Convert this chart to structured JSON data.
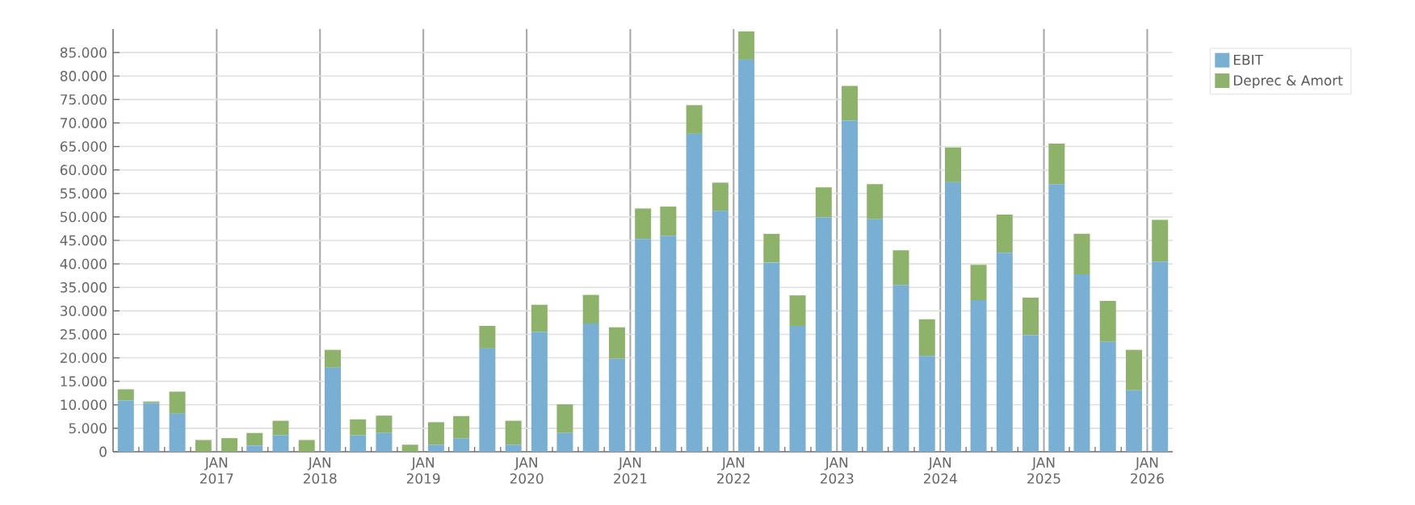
{
  "chart_data": {
    "type": "bar",
    "stacked": true,
    "x": [
      "2016-02-15",
      "2016-05-15",
      "2016-08-15",
      "2016-11-15",
      "2017-02-15",
      "2017-05-15",
      "2017-08-15",
      "2017-11-15",
      "2018-02-15",
      "2018-05-15",
      "2018-08-15",
      "2018-11-15",
      "2019-02-15",
      "2019-05-15",
      "2019-08-15",
      "2019-11-15",
      "2020-02-15",
      "2020-05-15",
      "2020-08-15",
      "2020-11-15",
      "2021-02-15",
      "2021-05-15",
      "2021-08-15",
      "2021-11-15",
      "2022-02-15",
      "2022-05-15",
      "2022-08-15",
      "2022-11-15",
      "2023-02-15",
      "2023-05-15",
      "2023-08-15",
      "2023-11-15",
      "2024-02-15",
      "2024-05-15",
      "2024-08-15",
      "2024-11-15",
      "2025-02-15",
      "2025-05-15",
      "2025-08-15",
      "2025-11-15",
      "2026-02-15"
    ],
    "series": [
      {
        "name": "EBIT",
        "color": "#78afd2",
        "values": [
          10900,
          10400,
          8100,
          0,
          0,
          1300,
          3500,
          0,
          17900,
          3500,
          4000,
          0,
          1500,
          2800,
          22000,
          1500,
          25500,
          4000,
          27300,
          19800,
          45300,
          46000,
          67700,
          51300,
          83500,
          40300,
          26800,
          49900,
          70500,
          49500,
          35500,
          20400,
          57400,
          32300,
          42400,
          24800,
          57000,
          37800,
          23400,
          13100,
          40500
        ]
      },
      {
        "name": "Deprec & Amort",
        "color": "#8db36a",
        "values": [
          2400,
          300,
          4700,
          2500,
          2900,
          2700,
          3100,
          2500,
          3800,
          3400,
          3700,
          1500,
          4800,
          4800,
          4800,
          5100,
          5800,
          6100,
          6100,
          6700,
          6500,
          6200,
          6100,
          6000,
          6000,
          6100,
          6500,
          6400,
          7400,
          7500,
          7400,
          7800,
          7400,
          7500,
          8100,
          8000,
          8600,
          8600,
          8700,
          8600,
          8900
        ]
      }
    ],
    "xlim": [
      "2016-01-01",
      "2026-04-01"
    ],
    "xticks": [
      {
        "value": "2016-04-01",
        "label": null
      },
      {
        "value": "2016-07-01",
        "label": null
      },
      {
        "value": "2016-10-01",
        "label": null
      },
      {
        "value": "2017-01-01",
        "label": "JAN 2017"
      },
      {
        "value": "2017-04-01",
        "label": null
      },
      {
        "value": "2017-07-01",
        "label": null
      },
      {
        "value": "2017-10-01",
        "label": null
      },
      {
        "value": "2018-01-01",
        "label": "JAN 2018"
      },
      {
        "value": "2018-04-01",
        "label": null
      },
      {
        "value": "2018-07-01",
        "label": null
      },
      {
        "value": "2018-10-01",
        "label": null
      },
      {
        "value": "2019-01-01",
        "label": "JAN 2019"
      },
      {
        "value": "2019-04-01",
        "label": null
      },
      {
        "value": "2019-07-01",
        "label": null
      },
      {
        "value": "2019-10-01",
        "label": null
      },
      {
        "value": "2020-01-01",
        "label": "JAN 2020"
      },
      {
        "value": "2020-04-01",
        "label": null
      },
      {
        "value": "2020-07-01",
        "label": null
      },
      {
        "value": "2020-10-01",
        "label": null
      },
      {
        "value": "2021-01-01",
        "label": "JAN 2021"
      },
      {
        "value": "2021-04-01",
        "label": null
      },
      {
        "value": "2021-07-01",
        "label": null
      },
      {
        "value": "2021-10-01",
        "label": null
      },
      {
        "value": "2022-01-01",
        "label": "JAN 2022"
      },
      {
        "value": "2022-04-01",
        "label": null
      },
      {
        "value": "2022-07-01",
        "label": null
      },
      {
        "value": "2022-10-01",
        "label": null
      },
      {
        "value": "2023-01-01",
        "label": "JAN 2023"
      },
      {
        "value": "2023-04-01",
        "label": null
      },
      {
        "value": "2023-07-01",
        "label": null
      },
      {
        "value": "2023-10-01",
        "label": null
      },
      {
        "value": "2024-01-01",
        "label": "JAN 2024"
      },
      {
        "value": "2024-04-01",
        "label": null
      },
      {
        "value": "2024-07-01",
        "label": null
      },
      {
        "value": "2024-10-01",
        "label": null
      },
      {
        "value": "2025-01-01",
        "label": "JAN 2025"
      },
      {
        "value": "2025-04-01",
        "label": null
      },
      {
        "value": "2025-07-01",
        "label": null
      },
      {
        "value": "2025-10-01",
        "label": null
      },
      {
        "value": "2026-01-01",
        "label": "JAN 2026"
      }
    ],
    "ylim": [
      0,
      90000
    ],
    "yticks": [
      0,
      {
        "value": 5000,
        "label": "5.000"
      },
      {
        "value": 10000,
        "label": "10.000"
      },
      {
        "value": 15000,
        "label": "15.000"
      },
      {
        "value": 20000,
        "label": "20.000"
      },
      {
        "value": 25000,
        "label": "25.000"
      },
      {
        "value": 30000,
        "label": "30.000"
      },
      {
        "value": 35000,
        "label": "35.000"
      },
      {
        "value": 40000,
        "label": "40.000"
      },
      {
        "value": 45000,
        "label": "45.000"
      },
      {
        "value": 50000,
        "label": "50.000"
      },
      {
        "value": 55000,
        "label": "55.000"
      },
      {
        "value": 60000,
        "label": "60.000"
      },
      {
        "value": 65000,
        "label": "65.000"
      },
      {
        "value": 70000,
        "label": "70.000"
      },
      {
        "value": 75000,
        "label": "75.000"
      },
      {
        "value": 80000,
        "label": "80.000"
      },
      {
        "value": 85000,
        "label": "85.000"
      }
    ],
    "grid": true,
    "legend": "top right"
  }
}
